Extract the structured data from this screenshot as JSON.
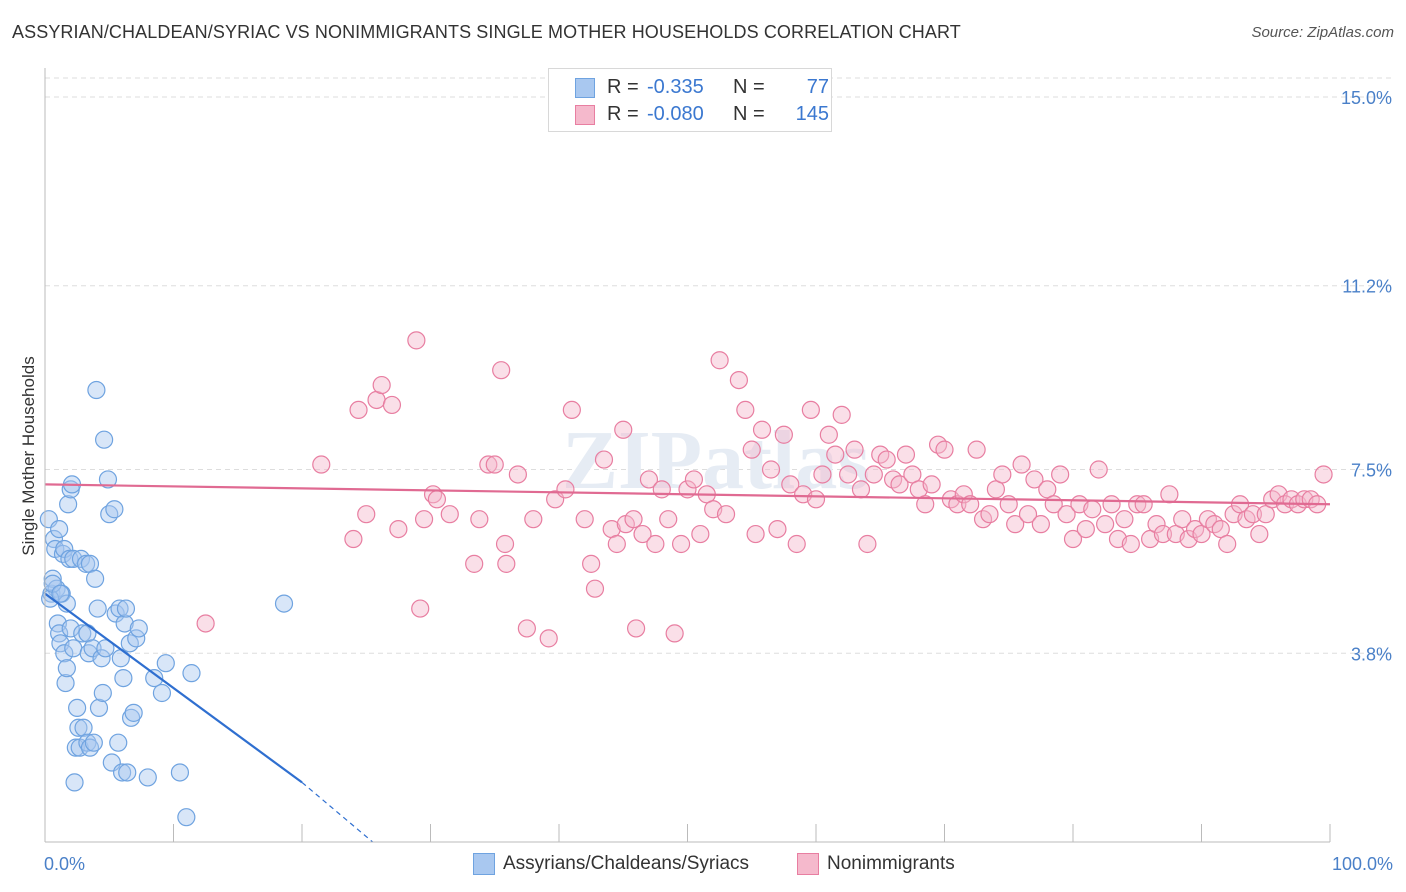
{
  "title": "ASSYRIAN/CHALDEAN/SYRIAC VS NONIMMIGRANTS SINGLE MOTHER HOUSEHOLDS CORRELATION CHART",
  "source": "Source: ZipAtlas.com",
  "colors": {
    "blue": "#6fa3e0",
    "blue_fill": "#a9c8f0",
    "blue_line": "#2f6fd0",
    "pink": "#e87ea1",
    "pink_fill": "#f5b9cc",
    "pink_line": "#e06a92",
    "tick_text": "#4a80c8"
  },
  "legend": {
    "rows": [
      {
        "r_label": "R =",
        "r_value": "-0.335",
        "n_label": "N =",
        "n_value": "77"
      },
      {
        "r_label": "R =",
        "r_value": "-0.080",
        "n_label": "N =",
        "n_value": "145"
      }
    ]
  },
  "bottom_legend": [
    "Assyrians/Chaldeans/Syriacs",
    "Nonimmigrants"
  ],
  "chart_data": {
    "type": "scatter",
    "ylabel": "Single Mother Households",
    "xlabel": "",
    "xlim": [
      0,
      100
    ],
    "ylim": [
      0,
      15.0
    ],
    "y_ticks": [
      {
        "value": 3.8,
        "label": "3.8%"
      },
      {
        "value": 7.5,
        "label": "7.5%"
      },
      {
        "value": 11.2,
        "label": "11.2%"
      },
      {
        "value": 15.0,
        "label": "15.0%"
      }
    ],
    "x_tick_labels": {
      "min": "0.0%",
      "max": "100.0%"
    },
    "grid": true,
    "watermark": "ZIPatlas",
    "series": [
      {
        "name": "Assyrians/Chaldeans/Syriacs",
        "trend": {
          "x": [
            0,
            20
          ],
          "y": [
            5.0,
            1.2
          ],
          "dashed_to": [
            25.5,
            0.0
          ]
        },
        "points": [
          [
            0.3,
            6.5
          ],
          [
            0.5,
            5.0
          ],
          [
            0.6,
            5.3
          ],
          [
            0.7,
            6.1
          ],
          [
            0.8,
            5.9
          ],
          [
            0.9,
            5.1
          ],
          [
            1.0,
            4.4
          ],
          [
            1.1,
            4.2
          ],
          [
            1.1,
            6.3
          ],
          [
            1.2,
            4.0
          ],
          [
            1.3,
            5.0
          ],
          [
            1.4,
            5.8
          ],
          [
            1.5,
            5.9
          ],
          [
            1.5,
            3.8
          ],
          [
            1.6,
            3.2
          ],
          [
            1.7,
            3.5
          ],
          [
            1.7,
            4.8
          ],
          [
            1.8,
            6.8
          ],
          [
            1.9,
            5.7
          ],
          [
            2.0,
            4.3
          ],
          [
            2.0,
            7.1
          ],
          [
            2.1,
            7.2
          ],
          [
            2.2,
            3.9
          ],
          [
            2.2,
            5.7
          ],
          [
            2.3,
            1.2
          ],
          [
            2.4,
            1.9
          ],
          [
            2.5,
            2.7
          ],
          [
            2.6,
            2.3
          ],
          [
            2.7,
            1.9
          ],
          [
            2.8,
            5.7
          ],
          [
            2.9,
            4.2
          ],
          [
            3.0,
            2.3
          ],
          [
            3.2,
            5.6
          ],
          [
            3.3,
            2.0
          ],
          [
            3.3,
            4.2
          ],
          [
            3.4,
            3.8
          ],
          [
            3.5,
            1.9
          ],
          [
            3.5,
            5.6
          ],
          [
            3.7,
            3.9
          ],
          [
            3.8,
            2.0
          ],
          [
            3.9,
            5.3
          ],
          [
            4.0,
            9.1
          ],
          [
            4.1,
            4.7
          ],
          [
            4.2,
            2.7
          ],
          [
            4.4,
            3.7
          ],
          [
            4.5,
            3.0
          ],
          [
            4.6,
            8.1
          ],
          [
            4.7,
            3.9
          ],
          [
            4.9,
            7.3
          ],
          [
            5.0,
            6.6
          ],
          [
            5.2,
            1.6
          ],
          [
            5.4,
            6.7
          ],
          [
            5.5,
            4.6
          ],
          [
            5.7,
            2.0
          ],
          [
            5.8,
            4.7
          ],
          [
            5.9,
            3.7
          ],
          [
            6.0,
            1.4
          ],
          [
            6.1,
            3.3
          ],
          [
            6.2,
            4.4
          ],
          [
            6.3,
            4.7
          ],
          [
            6.4,
            1.4
          ],
          [
            6.6,
            4.0
          ],
          [
            6.7,
            2.5
          ],
          [
            6.9,
            2.6
          ],
          [
            7.1,
            4.1
          ],
          [
            7.3,
            4.3
          ],
          [
            8.0,
            1.3
          ],
          [
            8.5,
            3.3
          ],
          [
            9.1,
            3.0
          ],
          [
            9.4,
            3.6
          ],
          [
            10.5,
            1.4
          ],
          [
            11.0,
            0.5
          ],
          [
            11.4,
            3.4
          ],
          [
            18.6,
            4.8
          ],
          [
            0.4,
            4.9
          ],
          [
            0.6,
            5.2
          ],
          [
            1.2,
            5.0
          ]
        ]
      },
      {
        "name": "Nonimmigrants",
        "trend": {
          "x": [
            0,
            100
          ],
          "y": [
            7.2,
            6.8
          ]
        },
        "points": [
          [
            12.5,
            4.4
          ],
          [
            21.5,
            7.6
          ],
          [
            24.0,
            6.1
          ],
          [
            25.0,
            6.6
          ],
          [
            24.4,
            8.7
          ],
          [
            25.8,
            8.9
          ],
          [
            26.2,
            9.2
          ],
          [
            27.0,
            8.8
          ],
          [
            27.5,
            6.3
          ],
          [
            28.9,
            10.1
          ],
          [
            29.2,
            4.7
          ],
          [
            29.5,
            6.5
          ],
          [
            30.2,
            7.0
          ],
          [
            30.5,
            6.9
          ],
          [
            31.5,
            6.6
          ],
          [
            33.4,
            5.6
          ],
          [
            33.8,
            6.5
          ],
          [
            34.5,
            7.6
          ],
          [
            35.0,
            7.6
          ],
          [
            35.5,
            9.5
          ],
          [
            35.8,
            6.0
          ],
          [
            35.9,
            5.6
          ],
          [
            36.8,
            7.4
          ],
          [
            37.5,
            4.3
          ],
          [
            38.0,
            6.5
          ],
          [
            39.2,
            4.1
          ],
          [
            39.7,
            6.9
          ],
          [
            40.5,
            7.1
          ],
          [
            41.0,
            8.7
          ],
          [
            42.0,
            6.5
          ],
          [
            42.5,
            5.6
          ],
          [
            42.8,
            5.1
          ],
          [
            43.5,
            7.7
          ],
          [
            44.1,
            6.3
          ],
          [
            44.5,
            6.0
          ],
          [
            45.0,
            8.3
          ],
          [
            45.2,
            6.4
          ],
          [
            45.8,
            6.5
          ],
          [
            46.0,
            4.3
          ],
          [
            46.5,
            6.2
          ],
          [
            47.0,
            7.3
          ],
          [
            47.5,
            6.0
          ],
          [
            48.0,
            7.1
          ],
          [
            48.5,
            6.5
          ],
          [
            49.0,
            4.2
          ],
          [
            49.5,
            6.0
          ],
          [
            50.0,
            7.1
          ],
          [
            50.5,
            7.3
          ],
          [
            51.0,
            6.2
          ],
          [
            51.5,
            7.0
          ],
          [
            52.0,
            6.7
          ],
          [
            52.5,
            9.7
          ],
          [
            53.0,
            6.6
          ],
          [
            54.0,
            9.3
          ],
          [
            54.5,
            8.7
          ],
          [
            55.0,
            7.9
          ],
          [
            55.3,
            6.2
          ],
          [
            55.8,
            8.3
          ],
          [
            56.5,
            7.5
          ],
          [
            57.0,
            6.3
          ],
          [
            57.5,
            8.2
          ],
          [
            58.0,
            7.2
          ],
          [
            58.5,
            6.0
          ],
          [
            59.0,
            7.0
          ],
          [
            59.6,
            8.7
          ],
          [
            60.0,
            6.9
          ],
          [
            60.5,
            7.4
          ],
          [
            61.0,
            8.2
          ],
          [
            61.5,
            7.8
          ],
          [
            62.0,
            8.6
          ],
          [
            62.5,
            7.4
          ],
          [
            63.0,
            7.9
          ],
          [
            63.5,
            7.1
          ],
          [
            64.0,
            6.0
          ],
          [
            64.5,
            7.4
          ],
          [
            65.0,
            7.8
          ],
          [
            65.5,
            7.7
          ],
          [
            66.0,
            7.3
          ],
          [
            66.5,
            7.2
          ],
          [
            67.0,
            7.8
          ],
          [
            67.5,
            7.4
          ],
          [
            68.0,
            7.1
          ],
          [
            68.5,
            6.8
          ],
          [
            69.0,
            7.2
          ],
          [
            69.5,
            8.0
          ],
          [
            70.0,
            7.9
          ],
          [
            70.5,
            6.9
          ],
          [
            71.0,
            6.8
          ],
          [
            71.5,
            7.0
          ],
          [
            72.0,
            6.8
          ],
          [
            72.5,
            7.9
          ],
          [
            73.0,
            6.5
          ],
          [
            73.5,
            6.6
          ],
          [
            74.0,
            7.1
          ],
          [
            74.5,
            7.4
          ],
          [
            75.0,
            6.8
          ],
          [
            75.5,
            6.4
          ],
          [
            76.0,
            7.6
          ],
          [
            76.5,
            6.6
          ],
          [
            77.0,
            7.3
          ],
          [
            77.5,
            6.4
          ],
          [
            78.0,
            7.1
          ],
          [
            78.5,
            6.8
          ],
          [
            79.0,
            7.4
          ],
          [
            79.5,
            6.6
          ],
          [
            80.0,
            6.1
          ],
          [
            80.5,
            6.8
          ],
          [
            81.0,
            6.3
          ],
          [
            81.5,
            6.7
          ],
          [
            82.0,
            7.5
          ],
          [
            82.5,
            6.4
          ],
          [
            83.0,
            6.8
          ],
          [
            83.5,
            6.1
          ],
          [
            84.0,
            6.5
          ],
          [
            84.5,
            6.0
          ],
          [
            85.0,
            6.8
          ],
          [
            85.5,
            6.8
          ],
          [
            86.0,
            6.1
          ],
          [
            86.5,
            6.4
          ],
          [
            87.0,
            6.2
          ],
          [
            87.5,
            7.0
          ],
          [
            88.0,
            6.2
          ],
          [
            88.5,
            6.5
          ],
          [
            89.0,
            6.1
          ],
          [
            89.5,
            6.3
          ],
          [
            90.0,
            6.2
          ],
          [
            90.5,
            6.5
          ],
          [
            91.0,
            6.4
          ],
          [
            91.5,
            6.3
          ],
          [
            92.0,
            6.0
          ],
          [
            92.5,
            6.6
          ],
          [
            93.0,
            6.8
          ],
          [
            93.5,
            6.5
          ],
          [
            94.0,
            6.6
          ],
          [
            94.5,
            6.2
          ],
          [
            95.0,
            6.6
          ],
          [
            95.5,
            6.9
          ],
          [
            96.0,
            7.0
          ],
          [
            96.5,
            6.8
          ],
          [
            97.0,
            6.9
          ],
          [
            97.5,
            6.8
          ],
          [
            98.0,
            6.9
          ],
          [
            98.5,
            6.9
          ],
          [
            99.0,
            6.8
          ],
          [
            99.5,
            7.4
          ]
        ]
      }
    ]
  }
}
